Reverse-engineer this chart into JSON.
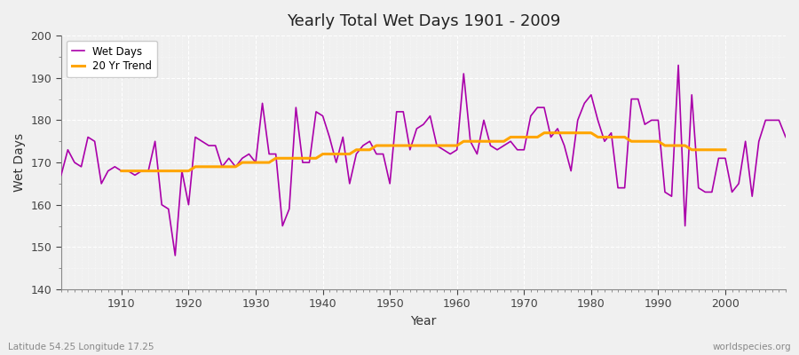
{
  "title": "Yearly Total Wet Days 1901 - 2009",
  "xlabel": "Year",
  "ylabel": "Wet Days",
  "lat_lon_label": "Latitude 54.25 Longitude 17.25",
  "watermark": "worldspecies.org",
  "ylim": [
    140,
    200
  ],
  "xlim": [
    1901,
    2009
  ],
  "yticks": [
    140,
    150,
    160,
    170,
    180,
    190,
    200
  ],
  "xticks": [
    1910,
    1920,
    1930,
    1940,
    1950,
    1960,
    1970,
    1980,
    1990,
    2000
  ],
  "wet_days_color": "#AA00AA",
  "trend_color": "#FFA500",
  "background_color": "#F0F0F0",
  "fig_facecolor": "#F0F0F0",
  "wet_days": [
    167,
    173,
    170,
    169,
    176,
    175,
    165,
    168,
    169,
    168,
    168,
    167,
    168,
    168,
    175,
    160,
    159,
    148,
    168,
    160,
    176,
    175,
    174,
    174,
    169,
    171,
    169,
    171,
    172,
    170,
    184,
    172,
    172,
    155,
    159,
    183,
    170,
    170,
    182,
    181,
    176,
    170,
    176,
    165,
    172,
    174,
    175,
    172,
    172,
    165,
    182,
    182,
    173,
    178,
    179,
    181,
    174,
    173,
    172,
    173,
    191,
    175,
    172,
    180,
    174,
    173,
    174,
    175,
    173,
    173,
    181,
    183,
    183,
    176,
    178,
    174,
    168,
    180,
    184,
    186,
    180,
    175,
    177,
    164,
    164,
    185,
    185,
    179,
    180,
    180,
    163,
    162,
    193,
    155,
    186,
    164,
    163,
    163,
    171,
    171,
    163,
    165,
    175,
    162,
    175,
    180,
    180,
    180,
    176
  ],
  "trend": [
    null,
    null,
    null,
    null,
    null,
    null,
    null,
    null,
    null,
    168,
    168,
    168,
    168,
    168,
    168,
    168,
    168,
    168,
    168,
    168,
    169,
    169,
    169,
    169,
    169,
    169,
    169,
    170,
    170,
    170,
    170,
    170,
    171,
    171,
    171,
    171,
    171,
    171,
    171,
    172,
    172,
    172,
    172,
    172,
    173,
    173,
    173,
    174,
    174,
    174,
    174,
    174,
    174,
    174,
    174,
    174,
    174,
    174,
    174,
    174,
    175,
    175,
    175,
    175,
    175,
    175,
    175,
    176,
    176,
    176,
    176,
    176,
    177,
    177,
    177,
    177,
    177,
    177,
    177,
    177,
    176,
    176,
    176,
    176,
    176,
    175,
    175,
    175,
    175,
    175,
    174,
    174,
    174,
    174,
    173,
    173,
    173,
    173,
    173,
    173,
    null,
    null,
    null,
    null,
    null,
    null,
    null,
    null,
    null
  ]
}
